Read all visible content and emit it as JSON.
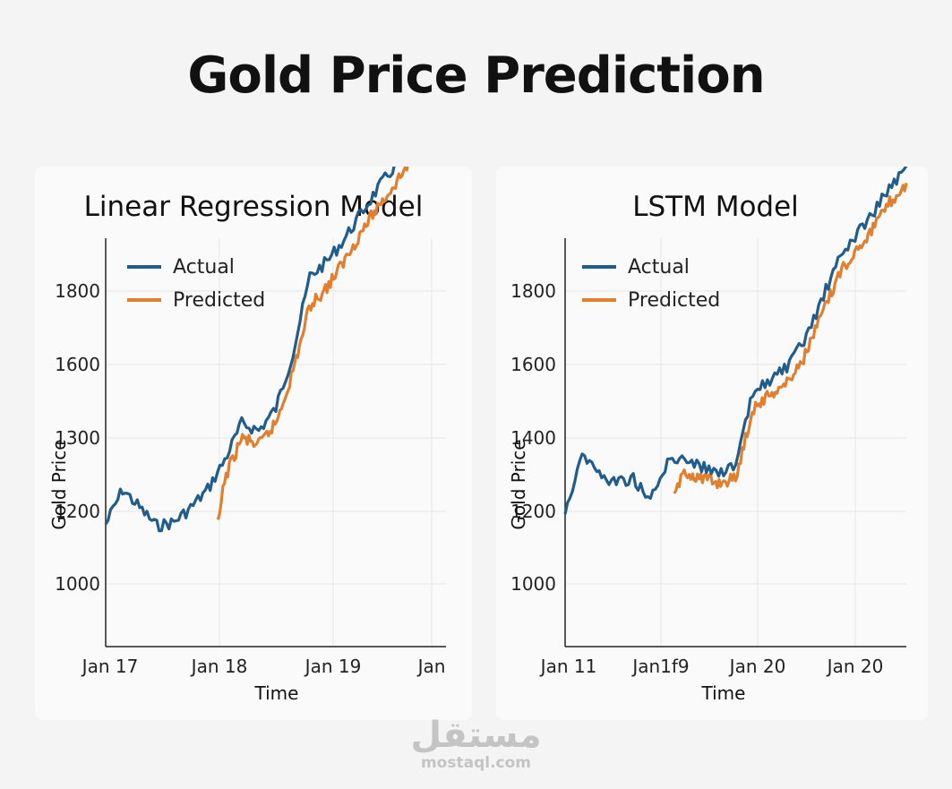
{
  "page": {
    "title": "Gold Price Prediction"
  },
  "colors": {
    "actual": "#215d8c",
    "predicted": "#e07f2e",
    "grid": "#e6e6e6",
    "axis": "#222222"
  },
  "watermark": {
    "arabic": "مستقل",
    "latin": "mostaql.com"
  },
  "chart_data": [
    {
      "type": "line",
      "title": "Linear Regression Model",
      "xlabel": "Time",
      "ylabel": "Gold Price",
      "x_tick_labels": [
        "Jan 17",
        "Jan 18",
        "Jan 19",
        "Jan"
      ],
      "y_tick_labels": [
        "1000",
        "1200",
        "1300",
        "1600",
        "1800"
      ],
      "legend": {
        "position": "top-left"
      },
      "grid": true,
      "series": [
        {
          "name": "Actual",
          "x": [
            0,
            0.05,
            0.1,
            0.15,
            0.2,
            0.25,
            0.3,
            0.35,
            0.4,
            0.45,
            0.5,
            0.55,
            0.6,
            0.65,
            0.7,
            0.75,
            0.8,
            0.85,
            0.9,
            0.95,
            1.0
          ],
          "y_slot": [
            0.82,
            1.3,
            1.05,
            0.8,
            0.85,
            1.05,
            1.3,
            1.7,
            2.2,
            2.1,
            2.4,
            3.15,
            4.2,
            4.4,
            4.7,
            5.05,
            5.4,
            5.7,
            6.05,
            6.25,
            6.4
          ]
        },
        {
          "name": "Predicted",
          "x": [
            0.33,
            0.35,
            0.4,
            0.45,
            0.5,
            0.55,
            0.6,
            0.65,
            0.7,
            0.75,
            0.8,
            0.85,
            0.9,
            0.95,
            1.0
          ],
          "y_slot": [
            0.8,
            1.45,
            2.0,
            1.9,
            2.2,
            2.9,
            3.8,
            4.05,
            4.4,
            4.8,
            5.15,
            5.45,
            5.8,
            6.0,
            6.2
          ]
        }
      ]
    },
    {
      "type": "line",
      "title": "LSTM Model",
      "xlabel": "Time",
      "ylabel": "Gold Price",
      "x_tick_labels": [
        "Jan 11",
        "Jan1f9",
        "Jan 20",
        "Jan 20"
      ],
      "y_tick_labels": [
        "1000",
        "1200",
        "1400",
        "1600",
        "1800"
      ],
      "legend": {
        "position": "top-left"
      },
      "grid": true,
      "series": [
        {
          "name": "Actual",
          "x": [
            0,
            0.05,
            0.1,
            0.15,
            0.2,
            0.25,
            0.3,
            0.35,
            0.4,
            0.45,
            0.5,
            0.55,
            0.6,
            0.65,
            0.7,
            0.75,
            0.8,
            0.85,
            0.9,
            0.95,
            1.0
          ],
          "y_slot": [
            1.0,
            1.8,
            1.5,
            1.4,
            1.45,
            1.15,
            1.65,
            1.75,
            1.6,
            1.55,
            1.6,
            2.6,
            2.8,
            2.95,
            3.3,
            3.85,
            4.4,
            4.75,
            5.05,
            5.4,
            5.65
          ]
        },
        {
          "name": "Predicted",
          "x": [
            0.32,
            0.35,
            0.4,
            0.45,
            0.5,
            0.55,
            0.6,
            0.65,
            0.7,
            0.75,
            0.8,
            0.85,
            0.9,
            0.95,
            1.0
          ],
          "y_slot": [
            1.2,
            1.55,
            1.45,
            1.4,
            1.45,
            2.4,
            2.6,
            2.75,
            3.1,
            3.65,
            4.2,
            4.55,
            4.85,
            5.2,
            5.45
          ]
        }
      ]
    }
  ]
}
